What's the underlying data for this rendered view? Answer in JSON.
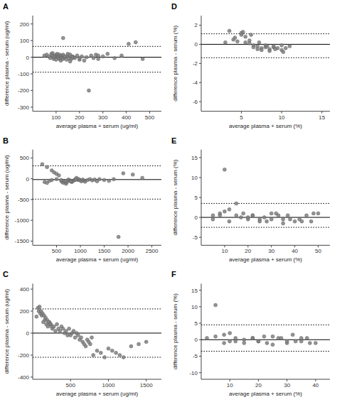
{
  "chart_data": [
    {
      "type": "scatter",
      "title": "A",
      "xlabel": "average plasma + serum (ug/ml)",
      "ylabel": "difference plasma - serum (ug/ml)",
      "xlim": [
        0,
        550
      ],
      "ylim": [
        -325,
        250
      ],
      "xticks": [
        100,
        200,
        300,
        400,
        500
      ],
      "yticks": [
        -300,
        -200,
        -100,
        0,
        100,
        200
      ],
      "mean_line": 0,
      "upper_loa": 65,
      "lower_loa": -90,
      "color": "#808080",
      "grid": false,
      "x": [
        50,
        60,
        70,
        75,
        80,
        85,
        85,
        90,
        90,
        95,
        100,
        100,
        105,
        105,
        110,
        110,
        115,
        115,
        120,
        120,
        125,
        125,
        130,
        130,
        135,
        140,
        145,
        150,
        155,
        160,
        165,
        170,
        175,
        180,
        190,
        200,
        210,
        220,
        230,
        250,
        260,
        270,
        280,
        300,
        320,
        350,
        380,
        410,
        440,
        470,
        240,
        130,
        200,
        170,
        150,
        160,
        280
      ],
      "values": [
        10,
        15,
        5,
        -5,
        20,
        25,
        10,
        -10,
        0,
        5,
        15,
        -15,
        10,
        20,
        -5,
        5,
        -10,
        15,
        5,
        -20,
        10,
        -5,
        15,
        -10,
        0,
        5,
        -15,
        10,
        -5,
        15,
        -10,
        5,
        0,
        -5,
        10,
        -15,
        5,
        -20,
        0,
        10,
        -5,
        15,
        -10,
        5,
        20,
        -5,
        10,
        80,
        90,
        -10,
        -200,
        115,
        -5,
        0,
        20,
        -25,
        10
      ]
    },
    {
      "type": "scatter",
      "title": "B",
      "xlabel": "average plasma + serum (ug/ml)",
      "ylabel": "difference plasma - serum (ug/ml)",
      "xlim": [
        0,
        2700
      ],
      "ylim": [
        -1600,
        700
      ],
      "xticks": [
        500,
        1000,
        1500,
        2000,
        2500
      ],
      "yticks": [
        -1500,
        -1000,
        -500,
        0,
        500
      ],
      "mean_line": -20,
      "upper_loa": 310,
      "lower_loa": -490,
      "color": "#808080",
      "grid": false,
      "x": [
        200,
        300,
        400,
        450,
        500,
        550,
        600,
        620,
        650,
        680,
        700,
        720,
        750,
        780,
        800,
        820,
        850,
        880,
        900,
        920,
        950,
        970,
        1000,
        1020,
        1050,
        1080,
        1100,
        1150,
        1200,
        1250,
        1300,
        1350,
        1400,
        1500,
        1600,
        1700,
        1900,
        2100,
        2300,
        250,
        300,
        350,
        400,
        500,
        600,
        700,
        800,
        900,
        1800
      ],
      "values": [
        350,
        280,
        200,
        150,
        120,
        80,
        -50,
        -80,
        -100,
        -60,
        -120,
        -80,
        -20,
        -40,
        -60,
        -80,
        -50,
        -30,
        -10,
        20,
        -30,
        -10,
        -40,
        -60,
        -20,
        -50,
        -70,
        -30,
        -10,
        -40,
        -20,
        -60,
        -10,
        -30,
        -50,
        -10,
        130,
        100,
        20,
        -80,
        -100,
        -50,
        -30,
        -10,
        -30,
        -50,
        -60,
        -20,
        -1400
      ]
    },
    {
      "type": "scatter",
      "title": "C",
      "xlabel": "average plasma + serum (ug/ml)",
      "ylabel": "difference plasma - serum (ug/ml)",
      "xlim": [
        0,
        1700
      ],
      "ylim": [
        -420,
        450
      ],
      "xticks": [
        500,
        1000,
        1500
      ],
      "yticks": [
        -400,
        -200,
        0,
        200,
        400
      ],
      "mean_line": 0,
      "upper_loa": 220,
      "lower_loa": -220,
      "color": "#808080",
      "grid": false,
      "x": [
        50,
        80,
        100,
        120,
        140,
        160,
        180,
        200,
        220,
        240,
        260,
        280,
        300,
        320,
        340,
        360,
        380,
        400,
        420,
        440,
        460,
        480,
        500,
        520,
        540,
        560,
        580,
        600,
        620,
        640,
        660,
        680,
        700,
        720,
        740,
        760,
        780,
        800,
        850,
        900,
        950,
        1000,
        1050,
        1100,
        1150,
        1200,
        1300,
        1400,
        1500,
        70,
        90,
        110,
        130,
        150,
        170,
        190,
        210,
        230,
        250
      ],
      "values": [
        150,
        200,
        180,
        160,
        100,
        120,
        80,
        60,
        100,
        80,
        40,
        60,
        20,
        80,
        40,
        20,
        60,
        40,
        0,
        20,
        -20,
        40,
        -20,
        0,
        20,
        -40,
        0,
        -20,
        -60,
        -40,
        -80,
        -100,
        -120,
        -60,
        -80,
        -100,
        -40,
        -200,
        -160,
        -180,
        -220,
        -140,
        -160,
        -180,
        -200,
        -220,
        -120,
        -100,
        -80,
        230,
        240,
        200,
        180,
        160,
        140,
        120,
        100,
        80,
        60
      ]
    },
    {
      "type": "scatter",
      "title": "D",
      "xlabel": "average plasma + serum (%)",
      "ylabel": "difference plasma - serum (%)",
      "xlim": [
        0,
        16
      ],
      "ylim": [
        -7,
        3
      ],
      "xticks": [
        5,
        10,
        15
      ],
      "yticks": [
        -6,
        -4,
        -2,
        0,
        2
      ],
      "mean_line": 0,
      "upper_loa": 1.1,
      "lower_loa": -1.4,
      "color": "#808080",
      "grid": false,
      "x": [
        3,
        4,
        4.5,
        5,
        5,
        5.5,
        5.5,
        6,
        6,
        6.5,
        6.5,
        7,
        7,
        7.5,
        7.5,
        8,
        8,
        8.5,
        8.5,
        9,
        9,
        9.5,
        10,
        10,
        10.5,
        11,
        3.5,
        4.2,
        5.2,
        6.2,
        7.2,
        8.2,
        9.2,
        10.2
      ],
      "values": [
        0.2,
        0.5,
        0.3,
        1.0,
        1.2,
        0.8,
        0.2,
        0.4,
        0.1,
        -0.1,
        -0.3,
        -0.5,
        -0.2,
        -0.4,
        -0.6,
        -0.3,
        -0.1,
        -0.5,
        -0.7,
        -0.3,
        -0.2,
        -0.4,
        -0.1,
        -0.6,
        -0.4,
        -0.2,
        1.4,
        0.7,
        1.3,
        1.0,
        0.2,
        -0.2,
        -0.5,
        -0.8
      ]
    },
    {
      "type": "scatter",
      "title": "E",
      "xlabel": "average plasma + serum (%)",
      "ylabel": "difference plasma - serum (%)",
      "xlim": [
        0,
        55
      ],
      "ylim": [
        -7,
        17
      ],
      "xticks": [
        10,
        20,
        30,
        40,
        50
      ],
      "yticks": [
        -5,
        0,
        5,
        10,
        15
      ],
      "mean_line": 0,
      "upper_loa": 3.5,
      "lower_loa": -2.5,
      "color": "#808080",
      "grid": false,
      "x": [
        5,
        8,
        10,
        12,
        15,
        18,
        20,
        22,
        25,
        27,
        30,
        32,
        35,
        37,
        40,
        42,
        45,
        47,
        50,
        10,
        15,
        20,
        25,
        30,
        35,
        5,
        8,
        12,
        17,
        22,
        28,
        33,
        38,
        43,
        48
      ],
      "values": [
        0.5,
        1.0,
        1.5,
        2.0,
        0.5,
        1.0,
        -0.5,
        0.5,
        -1.0,
        0.0,
        -0.5,
        1.0,
        -1.5,
        0.5,
        -1.0,
        -0.5,
        0.5,
        -1.0,
        1.0,
        12.0,
        3.5,
        0.0,
        -0.5,
        1.0,
        -0.5,
        -0.5,
        0.5,
        -1.0,
        0.0,
        0.5,
        -1.0,
        0.5,
        -0.5,
        -1.0,
        1.0
      ]
    },
    {
      "type": "scatter",
      "title": "F",
      "xlabel": "average plasma + serum (%)",
      "ylabel": "difference plasma - serum (%)",
      "xlim": [
        0,
        45
      ],
      "ylim": [
        -12,
        17
      ],
      "xticks": [
        10,
        20,
        30,
        40
      ],
      "yticks": [
        -10,
        -5,
        0,
        5,
        10,
        15
      ],
      "mean_line": 0,
      "upper_loa": 4.5,
      "lower_loa": -3.5,
      "color": "#808080",
      "grid": false,
      "x": [
        2,
        5,
        8,
        10,
        12,
        15,
        18,
        20,
        22,
        25,
        27,
        30,
        32,
        35,
        37,
        40,
        5,
        10,
        15,
        20,
        25,
        30,
        35,
        8,
        12,
        18,
        23,
        28,
        33,
        38
      ],
      "values": [
        0.5,
        1.0,
        1.5,
        -0.5,
        0.5,
        -1.0,
        0.5,
        -0.5,
        1.0,
        -1.5,
        0.5,
        -1.0,
        1.5,
        -0.5,
        0.5,
        -1.0,
        10.5,
        2.0,
        0.0,
        -0.5,
        1.0,
        -0.5,
        0.5,
        -1.0,
        -0.5,
        0.5,
        -1.0,
        0.5,
        -0.5,
        -1.0
      ]
    }
  ]
}
